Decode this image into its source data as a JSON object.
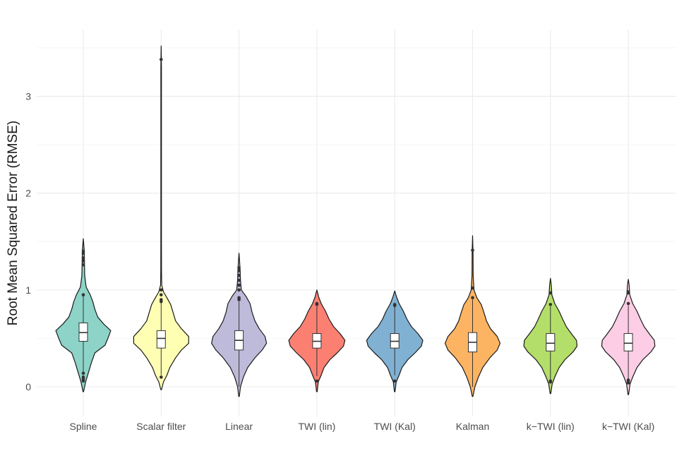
{
  "chart_data": {
    "type": "violin",
    "title": "",
    "xlabel": "",
    "ylabel": "Root Mean Squared Error (RMSE)",
    "ylim": [
      -0.2,
      3.55
    ],
    "yticks": [
      0,
      1,
      2,
      3
    ],
    "grid": true,
    "legend": "none",
    "categories": [
      "Spline",
      "Scalar filter",
      "Linear",
      "TWI (lin)",
      "TWI (Kal)",
      "Kalman",
      "k−TWI (lin)",
      "k−TWI (Kal)"
    ],
    "series": [
      {
        "category": "Spline",
        "color": "#8dd3c7",
        "min": -0.05,
        "max": 1.53,
        "box": {
          "q1": 0.47,
          "median": 0.56,
          "q3": 0.66
        },
        "whisker": {
          "low": 0.12,
          "high": 0.94
        },
        "outliers": [
          0.06,
          0.08,
          0.1,
          0.14,
          0.95,
          1.26,
          1.3,
          1.33,
          1.38,
          1.4
        ],
        "density": [
          [
            -0.05,
            0.01
          ],
          [
            0.05,
            0.08
          ],
          [
            0.15,
            0.18
          ],
          [
            0.25,
            0.28
          ],
          [
            0.35,
            0.4
          ],
          [
            0.43,
            0.75
          ],
          [
            0.5,
            0.85
          ],
          [
            0.58,
            0.95
          ],
          [
            0.65,
            0.7
          ],
          [
            0.72,
            0.5
          ],
          [
            0.8,
            0.4
          ],
          [
            0.88,
            0.33
          ],
          [
            0.95,
            0.24
          ],
          [
            1.03,
            0.1
          ],
          [
            1.15,
            0.05
          ],
          [
            1.3,
            0.04
          ],
          [
            1.42,
            0.03
          ],
          [
            1.53,
            0.0
          ]
        ]
      },
      {
        "category": "Scalar filter",
        "color": "#ffffb3",
        "min": -0.03,
        "max": 3.52,
        "box": {
          "q1": 0.4,
          "median": 0.5,
          "q3": 0.58
        },
        "whisker": {
          "low": 0.12,
          "high": 0.87
        },
        "outliers": [
          0.1,
          0.88,
          0.9,
          0.95,
          1.0,
          3.38
        ],
        "density": [
          [
            -0.03,
            0.01
          ],
          [
            0.05,
            0.08
          ],
          [
            0.12,
            0.2
          ],
          [
            0.2,
            0.3
          ],
          [
            0.3,
            0.5
          ],
          [
            0.38,
            0.7
          ],
          [
            0.45,
            0.95
          ],
          [
            0.52,
            0.95
          ],
          [
            0.6,
            0.7
          ],
          [
            0.68,
            0.5
          ],
          [
            0.76,
            0.42
          ],
          [
            0.85,
            0.33
          ],
          [
            0.92,
            0.2
          ],
          [
            0.98,
            0.08
          ],
          [
            1.05,
            0.02
          ],
          [
            1.2,
            0.012
          ],
          [
            1.6,
            0.01
          ],
          [
            2.2,
            0.01
          ],
          [
            2.8,
            0.01
          ],
          [
            3.3,
            0.01
          ],
          [
            3.52,
            0.0
          ]
        ]
      },
      {
        "category": "Linear",
        "color": "#bebada",
        "min": -0.1,
        "max": 1.38,
        "box": {
          "q1": 0.38,
          "median": 0.48,
          "q3": 0.58
        },
        "whisker": {
          "low": 0.0,
          "high": 0.88
        },
        "outliers": [
          0.9,
          0.92,
          1.0,
          1.05,
          1.1,
          1.15,
          1.2,
          1.23
        ],
        "density": [
          [
            -0.1,
            0.01
          ],
          [
            0.0,
            0.05
          ],
          [
            0.1,
            0.15
          ],
          [
            0.2,
            0.3
          ],
          [
            0.3,
            0.55
          ],
          [
            0.38,
            0.8
          ],
          [
            0.45,
            0.95
          ],
          [
            0.52,
            0.9
          ],
          [
            0.6,
            0.7
          ],
          [
            0.68,
            0.55
          ],
          [
            0.77,
            0.45
          ],
          [
            0.86,
            0.38
          ],
          [
            0.93,
            0.25
          ],
          [
            1.0,
            0.08
          ],
          [
            1.1,
            0.05
          ],
          [
            1.2,
            0.04
          ],
          [
            1.3,
            0.02
          ],
          [
            1.38,
            0.0
          ]
        ]
      },
      {
        "category": "TWI (lin)",
        "color": "#fb8072",
        "min": -0.05,
        "max": 1.0,
        "box": {
          "q1": 0.4,
          "median": 0.47,
          "q3": 0.55
        },
        "whisker": {
          "low": 0.11,
          "high": 0.83
        },
        "outliers": [
          0.06,
          0.85,
          0.86
        ],
        "density": [
          [
            -0.05,
            0.01
          ],
          [
            0.05,
            0.05
          ],
          [
            0.12,
            0.15
          ],
          [
            0.2,
            0.25
          ],
          [
            0.28,
            0.45
          ],
          [
            0.35,
            0.7
          ],
          [
            0.42,
            0.92
          ],
          [
            0.48,
            0.97
          ],
          [
            0.55,
            0.8
          ],
          [
            0.62,
            0.58
          ],
          [
            0.7,
            0.42
          ],
          [
            0.78,
            0.3
          ],
          [
            0.86,
            0.15
          ],
          [
            0.93,
            0.06
          ],
          [
            1.0,
            0.0
          ]
        ]
      },
      {
        "category": "TWI (Kal)",
        "color": "#80b1d3",
        "min": -0.05,
        "max": 0.99,
        "box": {
          "q1": 0.4,
          "median": 0.47,
          "q3": 0.55
        },
        "whisker": {
          "low": 0.12,
          "high": 0.83
        },
        "outliers": [
          0.06,
          0.84,
          0.85
        ],
        "density": [
          [
            -0.05,
            0.01
          ],
          [
            0.05,
            0.05
          ],
          [
            0.12,
            0.15
          ],
          [
            0.2,
            0.25
          ],
          [
            0.28,
            0.45
          ],
          [
            0.35,
            0.7
          ],
          [
            0.42,
            0.92
          ],
          [
            0.48,
            0.97
          ],
          [
            0.55,
            0.8
          ],
          [
            0.62,
            0.58
          ],
          [
            0.7,
            0.42
          ],
          [
            0.78,
            0.3
          ],
          [
            0.86,
            0.15
          ],
          [
            0.93,
            0.06
          ],
          [
            0.99,
            0.0
          ]
        ]
      },
      {
        "category": "Kalman",
        "color": "#fdb462",
        "min": -0.1,
        "max": 1.56,
        "box": {
          "q1": 0.36,
          "median": 0.46,
          "q3": 0.56
        },
        "whisker": {
          "low": 0.0,
          "high": 0.9
        },
        "outliers": [
          0.92,
          1.02,
          1.41
        ],
        "density": [
          [
            -0.1,
            0.01
          ],
          [
            0.0,
            0.08
          ],
          [
            0.1,
            0.2
          ],
          [
            0.2,
            0.35
          ],
          [
            0.3,
            0.6
          ],
          [
            0.38,
            0.85
          ],
          [
            0.45,
            0.95
          ],
          [
            0.52,
            0.85
          ],
          [
            0.6,
            0.62
          ],
          [
            0.68,
            0.48
          ],
          [
            0.76,
            0.4
          ],
          [
            0.85,
            0.3
          ],
          [
            0.92,
            0.15
          ],
          [
            1.0,
            0.05
          ],
          [
            1.15,
            0.02
          ],
          [
            1.4,
            0.015
          ],
          [
            1.56,
            0.0
          ]
        ]
      },
      {
        "category": "k−TWI (lin)",
        "color": "#b3de69",
        "min": -0.07,
        "max": 1.12,
        "box": {
          "q1": 0.37,
          "median": 0.45,
          "q3": 0.55
        },
        "whisker": {
          "low": 0.06,
          "high": 0.83
        },
        "outliers": [
          0.05,
          0.06,
          0.85,
          0.97
        ],
        "density": [
          [
            -0.07,
            0.01
          ],
          [
            0.03,
            0.06
          ],
          [
            0.1,
            0.15
          ],
          [
            0.2,
            0.3
          ],
          [
            0.28,
            0.5
          ],
          [
            0.36,
            0.78
          ],
          [
            0.42,
            0.92
          ],
          [
            0.48,
            0.9
          ],
          [
            0.55,
            0.72
          ],
          [
            0.62,
            0.55
          ],
          [
            0.7,
            0.42
          ],
          [
            0.78,
            0.3
          ],
          [
            0.86,
            0.15
          ],
          [
            0.95,
            0.05
          ],
          [
            1.05,
            0.03
          ],
          [
            1.12,
            0.0
          ]
        ]
      },
      {
        "category": "k−TWI (Kal)",
        "color": "#fccde5",
        "min": -0.08,
        "max": 1.11,
        "box": {
          "q1": 0.37,
          "median": 0.45,
          "q3": 0.55
        },
        "whisker": {
          "low": 0.07,
          "high": 0.84
        },
        "outliers": [
          0.04,
          0.05,
          0.06,
          0.07,
          0.86,
          0.97,
          0.98
        ],
        "density": [
          [
            -0.08,
            0.01
          ],
          [
            0.03,
            0.06
          ],
          [
            0.1,
            0.15
          ],
          [
            0.2,
            0.3
          ],
          [
            0.28,
            0.5
          ],
          [
            0.36,
            0.78
          ],
          [
            0.42,
            0.92
          ],
          [
            0.48,
            0.9
          ],
          [
            0.55,
            0.72
          ],
          [
            0.62,
            0.55
          ],
          [
            0.7,
            0.42
          ],
          [
            0.78,
            0.3
          ],
          [
            0.86,
            0.15
          ],
          [
            0.95,
            0.05
          ],
          [
            1.05,
            0.03
          ],
          [
            1.11,
            0.0
          ]
        ]
      }
    ]
  }
}
